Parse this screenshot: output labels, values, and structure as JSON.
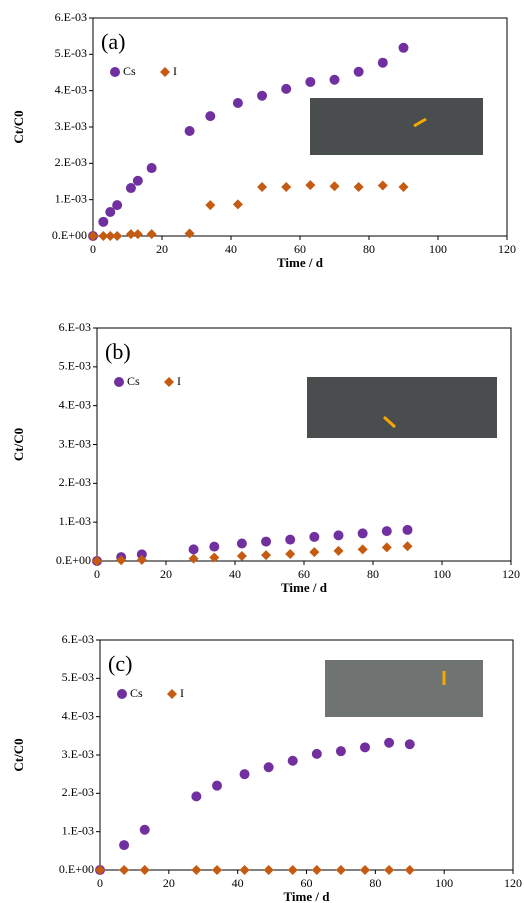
{
  "chart_data": [
    {
      "type": "scatter",
      "title": "(a)",
      "xlabel": "Time / d",
      "ylabel": "Ct/C0",
      "xlim": [
        0,
        120
      ],
      "xticks": [
        0,
        20,
        40,
        60,
        80,
        100,
        120
      ],
      "ylim": [
        0,
        0.006
      ],
      "yticks": [
        {
          "value": 0,
          "label": "0.E+00"
        },
        {
          "value": 0.001,
          "label": "1.E-03"
        },
        {
          "value": 0.002,
          "label": "2.E-03"
        },
        {
          "value": 0.003,
          "label": "3.E-03"
        },
        {
          "value": 0.004,
          "label": "4.E-03"
        },
        {
          "value": 0.005,
          "label": "5.E-03"
        },
        {
          "value": 0.006,
          "label": "6.E-03"
        }
      ],
      "legend": "upper left",
      "x": [
        0,
        3,
        5,
        7,
        11,
        13,
        17,
        28,
        34,
        42,
        49,
        56,
        63,
        70,
        77,
        84,
        90
      ],
      "series": [
        {
          "name": "Cs",
          "color": "#7030a0",
          "marker": "circle",
          "values": [
            0,
            0.00039,
            0.00066,
            0.00085,
            0.00132,
            0.00152,
            0.00187,
            0.00289,
            0.0033,
            0.00366,
            0.00386,
            0.00405,
            0.00424,
            0.0043,
            0.00452,
            0.00477,
            0.00518
          ]
        },
        {
          "name": "I",
          "color": "#c55a11",
          "marker": "diamond",
          "values": [
            0,
            0,
            0,
            0,
            5e-05,
            5e-05,
            5e-05,
            7e-05,
            0.00085,
            0.00087,
            0.00135,
            0.00135,
            0.0014,
            0.00137,
            0.00135,
            0.00139,
            0.00135
          ]
        }
      ]
    },
    {
      "type": "scatter",
      "title": "(b)",
      "xlabel": "Time / d",
      "ylabel": "Ct/C0",
      "xlim": [
        0,
        120
      ],
      "xticks": [
        0,
        20,
        40,
        60,
        80,
        100,
        120
      ],
      "ylim": [
        0,
        0.006
      ],
      "yticks": [
        {
          "value": 0,
          "label": "0.E+00"
        },
        {
          "value": 0.001,
          "label": "1.E-03"
        },
        {
          "value": 0.002,
          "label": "2.E-03"
        },
        {
          "value": 0.003,
          "label": "3.E-03"
        },
        {
          "value": 0.004,
          "label": "4.E-03"
        },
        {
          "value": 0.005,
          "label": "5.E-03"
        },
        {
          "value": 0.006,
          "label": "6.E-03"
        }
      ],
      "legend": "upper left",
      "x": [
        0,
        7,
        13,
        28,
        34,
        42,
        49,
        56,
        63,
        70,
        77,
        84,
        90
      ],
      "series": [
        {
          "name": "Cs",
          "color": "#7030a0",
          "marker": "circle",
          "values": [
            0,
            0.0001,
            0.00017,
            0.0003,
            0.00037,
            0.00045,
            0.0005,
            0.00055,
            0.00062,
            0.00066,
            0.00071,
            0.00077,
            0.0008
          ]
        },
        {
          "name": "I",
          "color": "#c55a11",
          "marker": "diamond",
          "values": [
            0,
            2e-05,
            3e-05,
            6e-05,
            9e-05,
            0.00013,
            0.00015,
            0.00018,
            0.00023,
            0.00026,
            0.0003,
            0.00035,
            0.00038
          ]
        }
      ]
    },
    {
      "type": "scatter",
      "title": "(c)",
      "xlabel": "Time / d",
      "ylabel": "Ct/C0",
      "xlim": [
        0,
        120
      ],
      "xticks": [
        0,
        20,
        40,
        60,
        80,
        100,
        120
      ],
      "ylim": [
        0,
        0.006
      ],
      "yticks": [
        {
          "value": 0,
          "label": "0.E+00"
        },
        {
          "value": 0.001,
          "label": "1.E-03"
        },
        {
          "value": 0.002,
          "label": "2.E-03"
        },
        {
          "value": 0.003,
          "label": "3.E-03"
        },
        {
          "value": 0.004,
          "label": "4.E-03"
        },
        {
          "value": 0.005,
          "label": "5.E-03"
        },
        {
          "value": 0.006,
          "label": "6.E-03"
        }
      ],
      "legend": "upper left",
      "x": [
        0,
        7,
        13,
        28,
        34,
        42,
        49,
        56,
        63,
        70,
        77,
        84,
        90
      ],
      "series": [
        {
          "name": "Cs",
          "color": "#7030a0",
          "marker": "circle",
          "values": [
            0,
            0.00065,
            0.00105,
            0.00192,
            0.0022,
            0.0025,
            0.00268,
            0.00285,
            0.00303,
            0.0031,
            0.0032,
            0.00332,
            0.00328
          ]
        },
        {
          "name": "I",
          "color": "#c55a11",
          "marker": "diamond",
          "values": [
            0,
            0,
            0,
            0,
            0,
            0,
            0,
            0,
            0,
            0,
            0,
            0,
            0
          ]
        }
      ]
    }
  ]
}
